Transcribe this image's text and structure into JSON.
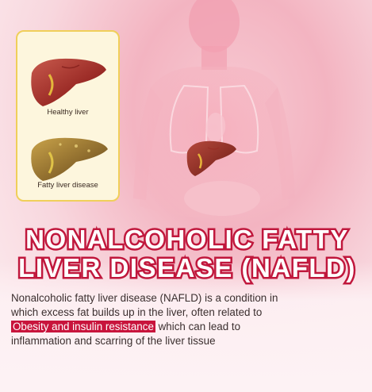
{
  "card": {
    "healthy_label": "Healthy liver",
    "fatty_label": "Fatty liver disease"
  },
  "title": {
    "line1": "NONALCOHOLIC FATTY",
    "line2": "LIVER DISEASE (NAFLD)"
  },
  "paragraph": {
    "line1": "Nonalcoholic fatty liver disease (NAFLD) is a condition in",
    "line2": "which excess fat builds up in the liver, often related to",
    "line3_highlight": "Obesity and insulin resistance",
    "line3_rest": " which can lead to",
    "line4": "inflammation and scarring of the liver tissue"
  },
  "colors": {
    "accent_red": "#c8143c",
    "card_border": "#f0cf5a",
    "card_fill": "#fdf6dd"
  },
  "icons": [
    "healthy-liver-illustration",
    "fatty-liver-illustration",
    "human-torso-silhouette",
    "torso-liver-illustration"
  ]
}
